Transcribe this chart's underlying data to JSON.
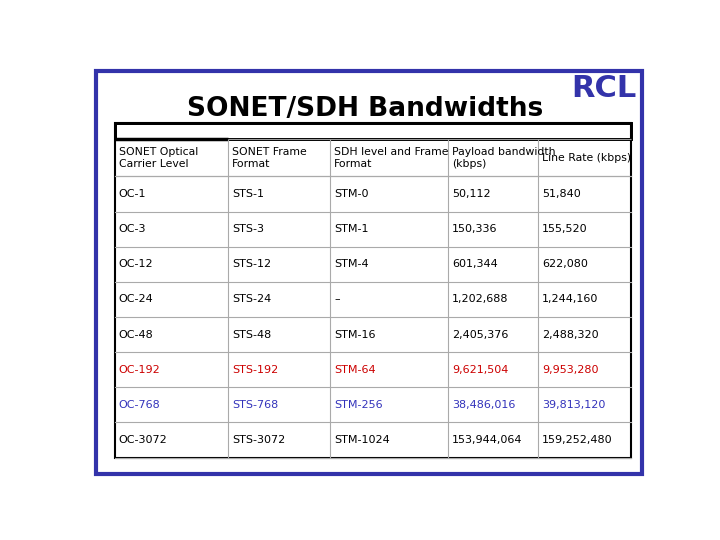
{
  "title": "SONET/SDH Bandwidths",
  "rcl_text": "RCL",
  "headers": [
    "SONET Optical\nCarrier Level",
    "SONET Frame\nFormat",
    "SDH level and Frame\nFormat",
    "Payload bandwidth\n(kbps)",
    "Line Rate (kbps)"
  ],
  "rows": [
    {
      "col1": "OC-1",
      "col2": "STS-1",
      "col3": "STM-0",
      "col4": "50,112",
      "col5": "51,840",
      "color": "black"
    },
    {
      "col1": "OC-3",
      "col2": "STS-3",
      "col3": "STM-1",
      "col4": "150,336",
      "col5": "155,520",
      "color": "black"
    },
    {
      "col1": "OC-12",
      "col2": "STS-12",
      "col3": "STM-4",
      "col4": "601,344",
      "col5": "622,080",
      "color": "black"
    },
    {
      "col1": "OC-24",
      "col2": "STS-24",
      "col3": "–",
      "col4": "1,202,688",
      "col5": "1,244,160",
      "color": "black"
    },
    {
      "col1": "OC-48",
      "col2": "STS-48",
      "col3": "STM-16",
      "col4": "2,405,376",
      "col5": "2,488,320",
      "color": "black"
    },
    {
      "col1": "OC-192",
      "col2": "STS-192",
      "col3": "STM-64",
      "col4": "9,621,504",
      "col5": "9,953,280",
      "color": "#cc0000"
    },
    {
      "col1": "OC-768",
      "col2": "STS-768",
      "col3": "STM-256",
      "col4": "38,486,016",
      "col5": "39,813,120",
      "color": "#3333bb"
    },
    {
      "col1": "OC-3072",
      "col2": "STS-3072",
      "col3": "STM-1024",
      "col4": "153,944,064",
      "col5": "159,252,480",
      "color": "black"
    }
  ],
  "bg_color": "#ffffff",
  "border_color": "#3333aa",
  "rcl_color": "#3333aa",
  "title_color": "#000000"
}
